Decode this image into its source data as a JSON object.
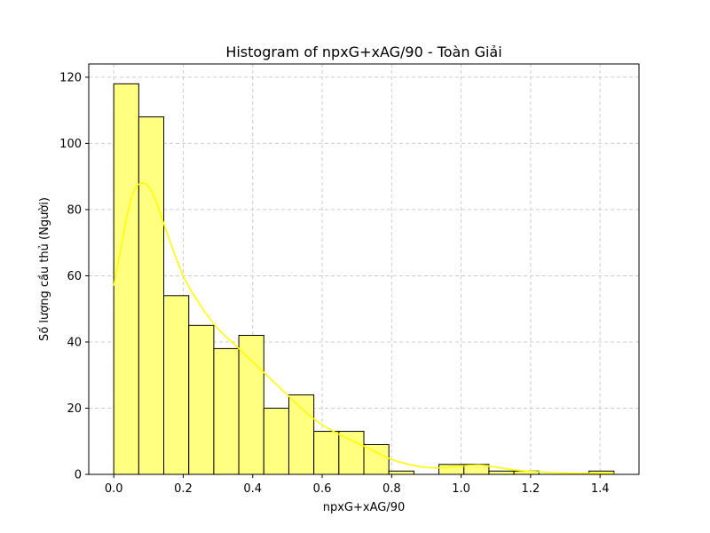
{
  "chart_data": {
    "type": "bar",
    "title": "Histogram of npxG+xAG/90 - Toàn Giải",
    "xlabel": "npxG+xAG/90",
    "ylabel": "Số lượng cầu thủ (Người)",
    "xlim": [
      -0.072,
      1.512
    ],
    "ylim": [
      0,
      124
    ],
    "grid": true,
    "bin_edges": [
      0.0,
      0.072,
      0.144,
      0.216,
      0.288,
      0.36,
      0.432,
      0.504,
      0.576,
      0.648,
      0.72,
      0.792,
      0.864,
      0.936,
      1.008,
      1.08,
      1.152,
      1.224,
      1.296,
      1.368,
      1.44
    ],
    "values": [
      118,
      108,
      54,
      45,
      38,
      42,
      20,
      24,
      13,
      13,
      9,
      1,
      0,
      3,
      3,
      1,
      1,
      0,
      0,
      1
    ],
    "x_ticks": [
      0.0,
      0.2,
      0.4,
      0.6,
      0.8,
      1.0,
      1.2,
      1.4
    ],
    "x_tick_labels": [
      "0.0",
      "0.2",
      "0.4",
      "0.6",
      "0.8",
      "1.0",
      "1.2",
      "1.4"
    ],
    "y_ticks": [
      0,
      20,
      40,
      60,
      80,
      100,
      120
    ],
    "y_tick_labels": [
      "0",
      "20",
      "40",
      "60",
      "80",
      "100",
      "120"
    ],
    "kde": {
      "x": [
        0.0,
        0.02,
        0.04,
        0.06,
        0.08,
        0.1,
        0.12,
        0.15,
        0.2,
        0.25,
        0.3,
        0.35,
        0.4,
        0.45,
        0.5,
        0.55,
        0.6,
        0.65,
        0.7,
        0.75,
        0.8,
        0.85,
        0.9,
        0.95,
        1.0,
        1.05,
        1.1,
        1.15,
        1.2,
        1.25,
        1.3,
        1.35,
        1.4,
        1.44
      ],
      "y": [
        57,
        68,
        79,
        86,
        88,
        87,
        83,
        74,
        60,
        51,
        44,
        39,
        34,
        29,
        24,
        19,
        15,
        12,
        9.5,
        7,
        4.5,
        3,
        2.1,
        2.0,
        2.5,
        2.8,
        2.2,
        1.4,
        0.9,
        0.6,
        0.4,
        0.3,
        0.3,
        0.3
      ]
    },
    "colors": {
      "bar_fill": "#ffff80",
      "bar_edge": "#000000",
      "kde_line": "#ffff00",
      "grid": "#cccccc"
    }
  }
}
